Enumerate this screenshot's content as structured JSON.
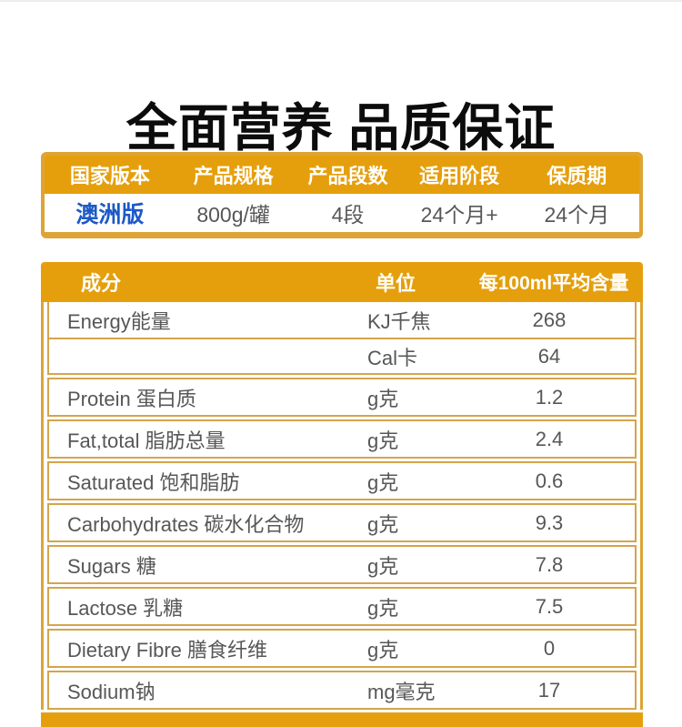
{
  "title": "全面营养 品质保证",
  "colors": {
    "gold_header": "#E59F0C",
    "gold_frame": "#DDA435",
    "row_border": "#D5A44C",
    "text_gray": "#575757",
    "version_blue": "#1C59C6"
  },
  "spec_table": {
    "headers": [
      "国家版本",
      "产品规格",
      "产品段数",
      "适用阶段",
      "保质期"
    ],
    "values": [
      "澳洲版",
      "800g/罐",
      "4段",
      "24个月+",
      "24个月"
    ]
  },
  "nutrition_table": {
    "header": {
      "name": "成分",
      "unit": "单位",
      "amount": "每100ml平均含量"
    },
    "rows": [
      {
        "name": "Energy能量",
        "entries": [
          {
            "unit": "KJ千焦",
            "amount": "268"
          },
          {
            "unit": "Cal卡",
            "amount": "64"
          }
        ]
      },
      {
        "name": "Protein 蛋白质",
        "entries": [
          {
            "unit": "g克",
            "amount": "1.2"
          }
        ]
      },
      {
        "name": "Fat,total 脂肪总量",
        "entries": [
          {
            "unit": "g克",
            "amount": "2.4"
          }
        ]
      },
      {
        "name": "Saturated 饱和脂肪",
        "entries": [
          {
            "unit": "g克",
            "amount": "0.6"
          }
        ]
      },
      {
        "name": "Carbohydrates 碳水化合物",
        "entries": [
          {
            "unit": "g克",
            "amount": "9.3"
          }
        ]
      },
      {
        "name": "Sugars 糖",
        "entries": [
          {
            "unit": "g克",
            "amount": "7.8"
          }
        ]
      },
      {
        "name": "Lactose 乳糖",
        "entries": [
          {
            "unit": "g克",
            "amount": "7.5"
          }
        ]
      },
      {
        "name": "Dietary Fibre 膳食纤维",
        "entries": [
          {
            "unit": "g克",
            "amount": "0"
          }
        ]
      },
      {
        "name": "Sodium钠",
        "entries": [
          {
            "unit": "mg毫克",
            "amount": "17"
          }
        ]
      }
    ]
  }
}
